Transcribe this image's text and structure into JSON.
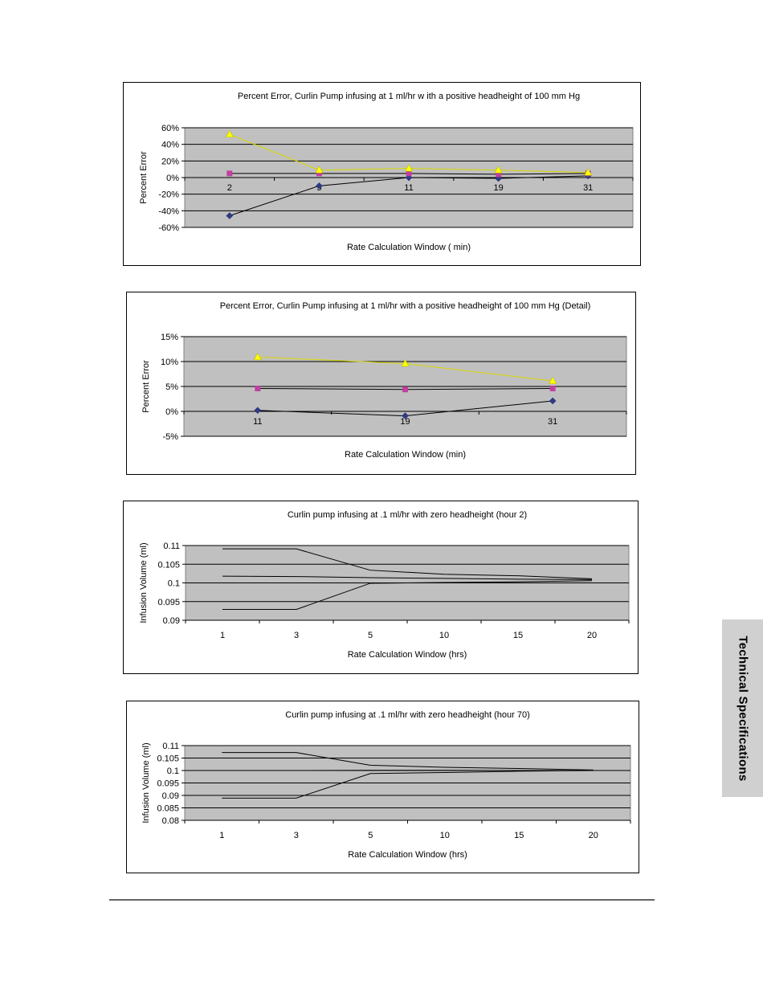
{
  "side_tab": {
    "label": "Technical Specifications"
  },
  "chart_data": [
    {
      "type": "line",
      "title": "Percent Error, Curlin Pump infusing at 1 ml/hr w ith a positive headheight of 100 mm Hg",
      "xlabel": "Rate Calculation Window ( min)",
      "ylabel": "Percent Error",
      "categories": [
        "2",
        "5",
        "11",
        "19",
        "31"
      ],
      "y_ticks": [
        "60%",
        "40%",
        "20%",
        "0%",
        "-20%",
        "-40%",
        "-60%"
      ],
      "ylim": [
        -60,
        60
      ],
      "grid": true,
      "legend": "none",
      "series": [
        {
          "values": [
            -46,
            -10,
            0,
            -1,
            2
          ],
          "color": "#2e3a87",
          "marker": "diamond"
        },
        {
          "values": [
            5,
            5,
            5,
            4,
            5
          ],
          "color": "#c040a0",
          "marker": "square"
        },
        {
          "values": [
            52,
            9,
            11,
            9,
            6
          ],
          "color": "#ffff00",
          "marker": "triangle"
        }
      ]
    },
    {
      "type": "line",
      "title": "Percent Error, Curlin Pump infusing at 1 ml/hr  with a positive headheight of 100 mm Hg (Detail)",
      "xlabel": "Rate Calculation Window  (min)",
      "ylabel": "Percent Error",
      "categories": [
        "11",
        "19",
        "31"
      ],
      "y_ticks": [
        "15%",
        "10%",
        "5%",
        "0%",
        "-5%"
      ],
      "ylim": [
        -5,
        15
      ],
      "grid": true,
      "legend": "none",
      "series": [
        {
          "values": [
            0.2,
            -0.9,
            2.1
          ],
          "color": "#2e3a87",
          "marker": "diamond"
        },
        {
          "values": [
            4.6,
            4.4,
            4.6
          ],
          "color": "#c040a0",
          "marker": "square"
        },
        {
          "values": [
            10.9,
            9.6,
            6.1
          ],
          "color": "#ffff00",
          "marker": "triangle"
        }
      ]
    },
    {
      "type": "line",
      "title": "Curlin pump infusing at .1 ml/hr  with zero headheight (hour 2)",
      "xlabel": "Rate Calculation Window  (hrs)",
      "ylabel": "Infusion Volume (ml)",
      "categories": [
        "1",
        "3",
        "5",
        "10",
        "15",
        "20"
      ],
      "y_ticks": [
        "0.11",
        "0.105",
        "0.1",
        "0.095",
        "0.09"
      ],
      "ylim": [
        0.09,
        0.11
      ],
      "grid": true,
      "legend": "none",
      "series": [
        {
          "values": [
            0.1091,
            0.1091,
            0.1034,
            0.1023,
            0.1019,
            0.1011
          ],
          "color": "#000000"
        },
        {
          "values": [
            0.1018,
            0.1017,
            0.1014,
            0.1012,
            0.101,
            0.1009
          ],
          "color": "#000000"
        },
        {
          "values": [
            0.0929,
            0.0929,
            0.0999,
            0.1001,
            0.1003,
            0.1006
          ],
          "color": "#000000"
        }
      ]
    },
    {
      "type": "line",
      "title": "Curlin pump infusing at .1 ml/hr  with zero headheight (hour 70)",
      "xlabel": "Rate Calculation Window  (hrs)",
      "ylabel": "Infusion Volume (ml)",
      "categories": [
        "1",
        "3",
        "5",
        "10",
        "15",
        "20"
      ],
      "y_ticks": [
        "0.11",
        "0.105",
        "0.1",
        "0.095",
        "0.09",
        "0.085",
        "0.08"
      ],
      "ylim": [
        0.08,
        0.11
      ],
      "grid": true,
      "legend": "none",
      "series": [
        {
          "values": [
            0.1072,
            0.1072,
            0.1021,
            0.1013,
            0.1008,
            0.1002
          ],
          "color": "#000000"
        },
        {
          "values": [
            0.1,
            0.1,
            0.1001,
            0.1001,
            0.1,
            0.1
          ],
          "color": "#000000"
        },
        {
          "values": [
            0.0889,
            0.0889,
            0.0988,
            0.0992,
            0.0997,
            0.1
          ],
          "color": "#000000"
        }
      ]
    }
  ]
}
